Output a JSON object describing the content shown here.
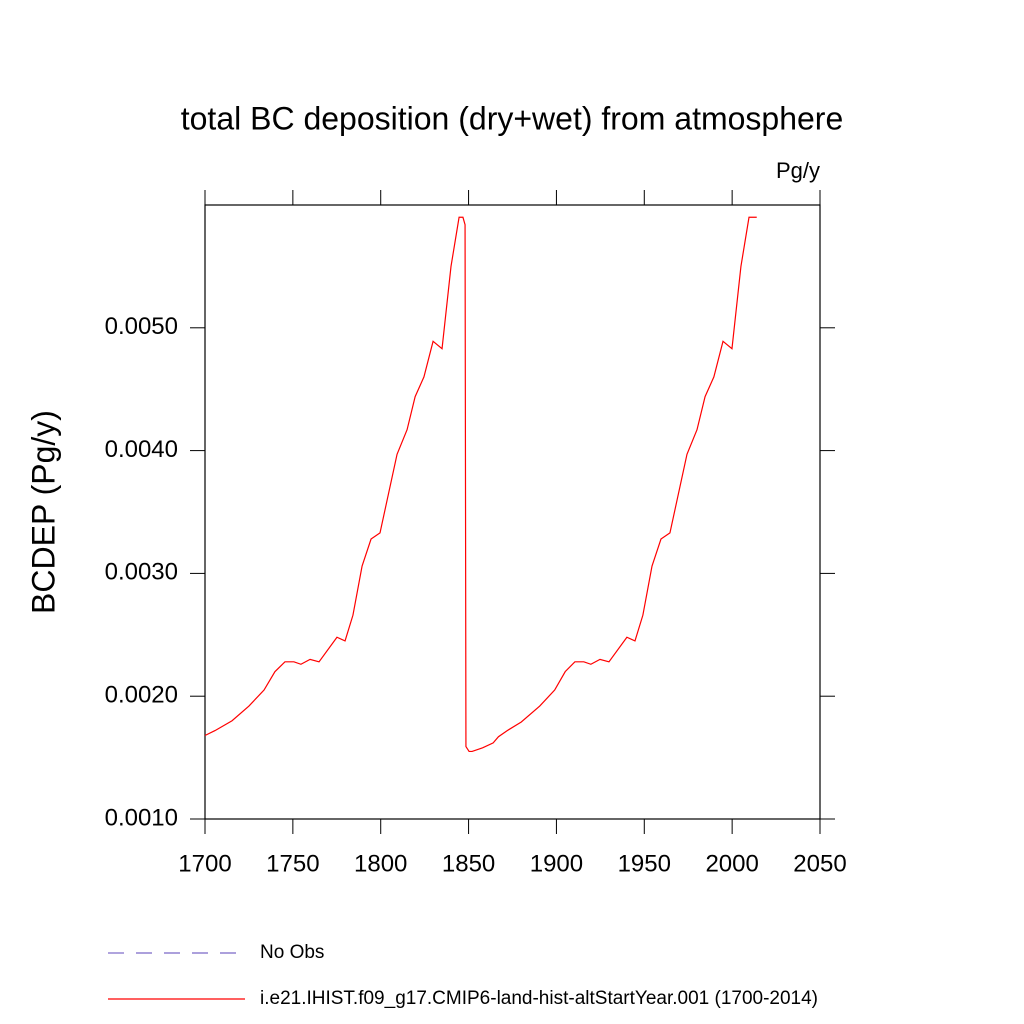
{
  "chart_data": {
    "type": "line",
    "title": "total BC deposition (dry+wet) from atmosphere",
    "units_label": "Pg/y",
    "y_label": "BCDEP  (Pg/y)",
    "x": [
      1700,
      1705.7,
      1715.4,
      1725,
      1733.6,
      1739.8,
      1745.5,
      1750.6,
      1754.6,
      1759.8,
      1764.9,
      1775.1,
      1779.7,
      1784.2,
      1789.4,
      1794.5,
      1799.6,
      1809.3,
      1815,
      1819.6,
      1824.6,
      1829.8,
      1834.9,
      1840,
      1844.6,
      1846.8,
      1848,
      1848.5,
      1850.3,
      1852,
      1858,
      1864,
      1867,
      1872,
      1880,
      1890.5,
      1899,
      1905,
      1910.5,
      1915.6,
      1919.6,
      1924.8,
      1929.9,
      1940.1,
      1944.7,
      1949.2,
      1954.4,
      1959.5,
      1964.6,
      1974.3,
      1980,
      1984.6,
      1989.6,
      1994.8,
      1999.9,
      2005,
      2009.6,
      2014
    ],
    "series": [
      {
        "name": "No Obs",
        "color": "#7b68c8",
        "dash": true,
        "values": [
          null,
          null,
          null,
          null,
          null,
          null,
          null,
          null,
          null,
          null,
          null,
          null,
          null,
          null,
          null,
          null,
          null,
          null,
          null,
          null,
          null,
          null,
          null,
          null,
          null,
          null,
          null,
          null,
          null,
          null,
          null,
          null,
          null,
          null,
          null,
          null,
          null,
          null,
          null,
          null,
          null,
          null,
          null,
          null,
          null,
          null,
          null,
          null,
          null,
          null,
          null,
          null,
          null,
          null,
          null,
          null,
          null,
          null
        ]
      },
      {
        "name": "i.e21.IHIST.f09_g17.CMIP6-land-hist-altStartYear.001 (1700-2014)",
        "color": "#ff0000",
        "dash": false,
        "values": [
          0.00168,
          0.00172,
          0.0018,
          0.00192,
          0.00205,
          0.0022,
          0.00228,
          0.00228,
          0.00226,
          0.0023,
          0.00228,
          0.00248,
          0.00245,
          0.00266,
          0.00306,
          0.00328,
          0.00333,
          0.00397,
          0.00417,
          0.00444,
          0.0046,
          0.00489,
          0.00483,
          0.0055,
          0.0059,
          0.0059,
          0.00584,
          0.00159,
          0.00155,
          0.00155,
          0.00158,
          0.00162,
          0.00167,
          0.00172,
          0.00179,
          0.00192,
          0.00205,
          0.0022,
          0.00228,
          0.00228,
          0.00226,
          0.0023,
          0.00228,
          0.00248,
          0.00245,
          0.00266,
          0.00306,
          0.00328,
          0.00333,
          0.00397,
          0.00417,
          0.00444,
          0.0046,
          0.00489,
          0.00483,
          0.0055,
          0.0059,
          0.0059
        ]
      }
    ],
    "xlim": [
      1700,
      2050
    ],
    "xticks": [
      1700,
      1750,
      1800,
      1850,
      1900,
      1950,
      2000,
      2050
    ],
    "ylim": [
      0.001,
      0.006
    ],
    "yticks": [
      {
        "value": 0.001,
        "label": "0.0010"
      },
      {
        "value": 0.002,
        "label": "0.0020"
      },
      {
        "value": 0.003,
        "label": "0.0030"
      },
      {
        "value": 0.004,
        "label": "0.0040"
      },
      {
        "value": 0.005,
        "label": "0.0050"
      }
    ],
    "grid": false
  }
}
